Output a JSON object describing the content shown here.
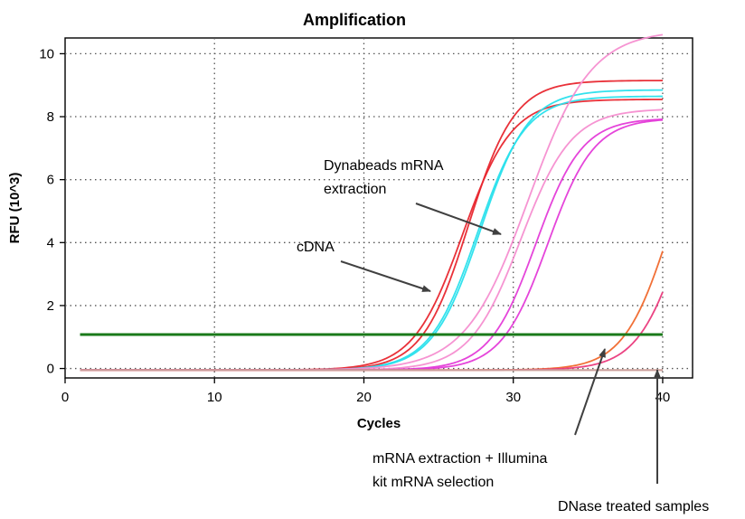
{
  "chart_data": {
    "type": "line",
    "title": "Amplification",
    "xlabel": "Cycles",
    "ylabel": "RFU (10^3)",
    "xlim": [
      0,
      42
    ],
    "ylim": [
      -0.3,
      10.5
    ],
    "xticks": [
      0,
      10,
      20,
      30,
      40
    ],
    "yticks": [
      0,
      2,
      4,
      6,
      8,
      10
    ],
    "grid": true,
    "threshold": {
      "y": 1.08,
      "color": "#1a7a1a"
    },
    "x_start": 1,
    "x_end": 40,
    "series": [
      {
        "group": "cDNA",
        "color": "#e8262e",
        "plateau": 9.2,
        "midpoint": 27.0,
        "slope": 1.55
      },
      {
        "group": "cDNA",
        "color": "#e8262e",
        "plateau": 8.6,
        "midpoint": 26.6,
        "slope": 1.65
      },
      {
        "group": "Dynabeads",
        "color": "#29e0ec",
        "plateau": 8.9,
        "midpoint": 27.8,
        "slope": 1.6
      },
      {
        "group": "Dynabeads",
        "color": "#29e0ec",
        "plateau": 8.7,
        "midpoint": 27.6,
        "slope": 1.6
      },
      {
        "group": "pink",
        "color": "#f58ed0",
        "plateau": 10.8,
        "midpoint": 31.0,
        "slope": 2.1
      },
      {
        "group": "pink",
        "color": "#f58ed0",
        "plateau": 8.3,
        "midpoint": 30.5,
        "slope": 1.7
      },
      {
        "group": "magenta",
        "color": "#e43bd8",
        "plateau": 8.0,
        "midpoint": 31.5,
        "slope": 1.55
      },
      {
        "group": "magenta",
        "color": "#e43bd8",
        "plateau": 8.0,
        "midpoint": 32.3,
        "slope": 1.55
      },
      {
        "group": "illumina",
        "color": "#f0682c",
        "plateau": 9.0,
        "midpoint": 40.5,
        "slope": 1.55
      },
      {
        "group": "illumina",
        "color": "#ea3a7c",
        "plateau": 9.0,
        "midpoint": 41.5,
        "slope": 1.55
      },
      {
        "group": "dnase",
        "color": "#e8926a",
        "plateau": 0.0,
        "midpoint": 60,
        "slope": 2
      },
      {
        "group": "dnase",
        "color": "#c8a0a0",
        "plateau": 0.0,
        "midpoint": 60,
        "slope": 2
      }
    ],
    "annotations": [
      {
        "lines": [
          "Dynabeads mRNA",
          "extraction"
        ]
      },
      {
        "lines": [
          "cDNA"
        ]
      },
      {
        "lines": [
          "mRNA extraction + Illumina",
          "kit mRNA selection"
        ]
      },
      {
        "lines": [
          "DNase treated samples"
        ]
      }
    ]
  }
}
